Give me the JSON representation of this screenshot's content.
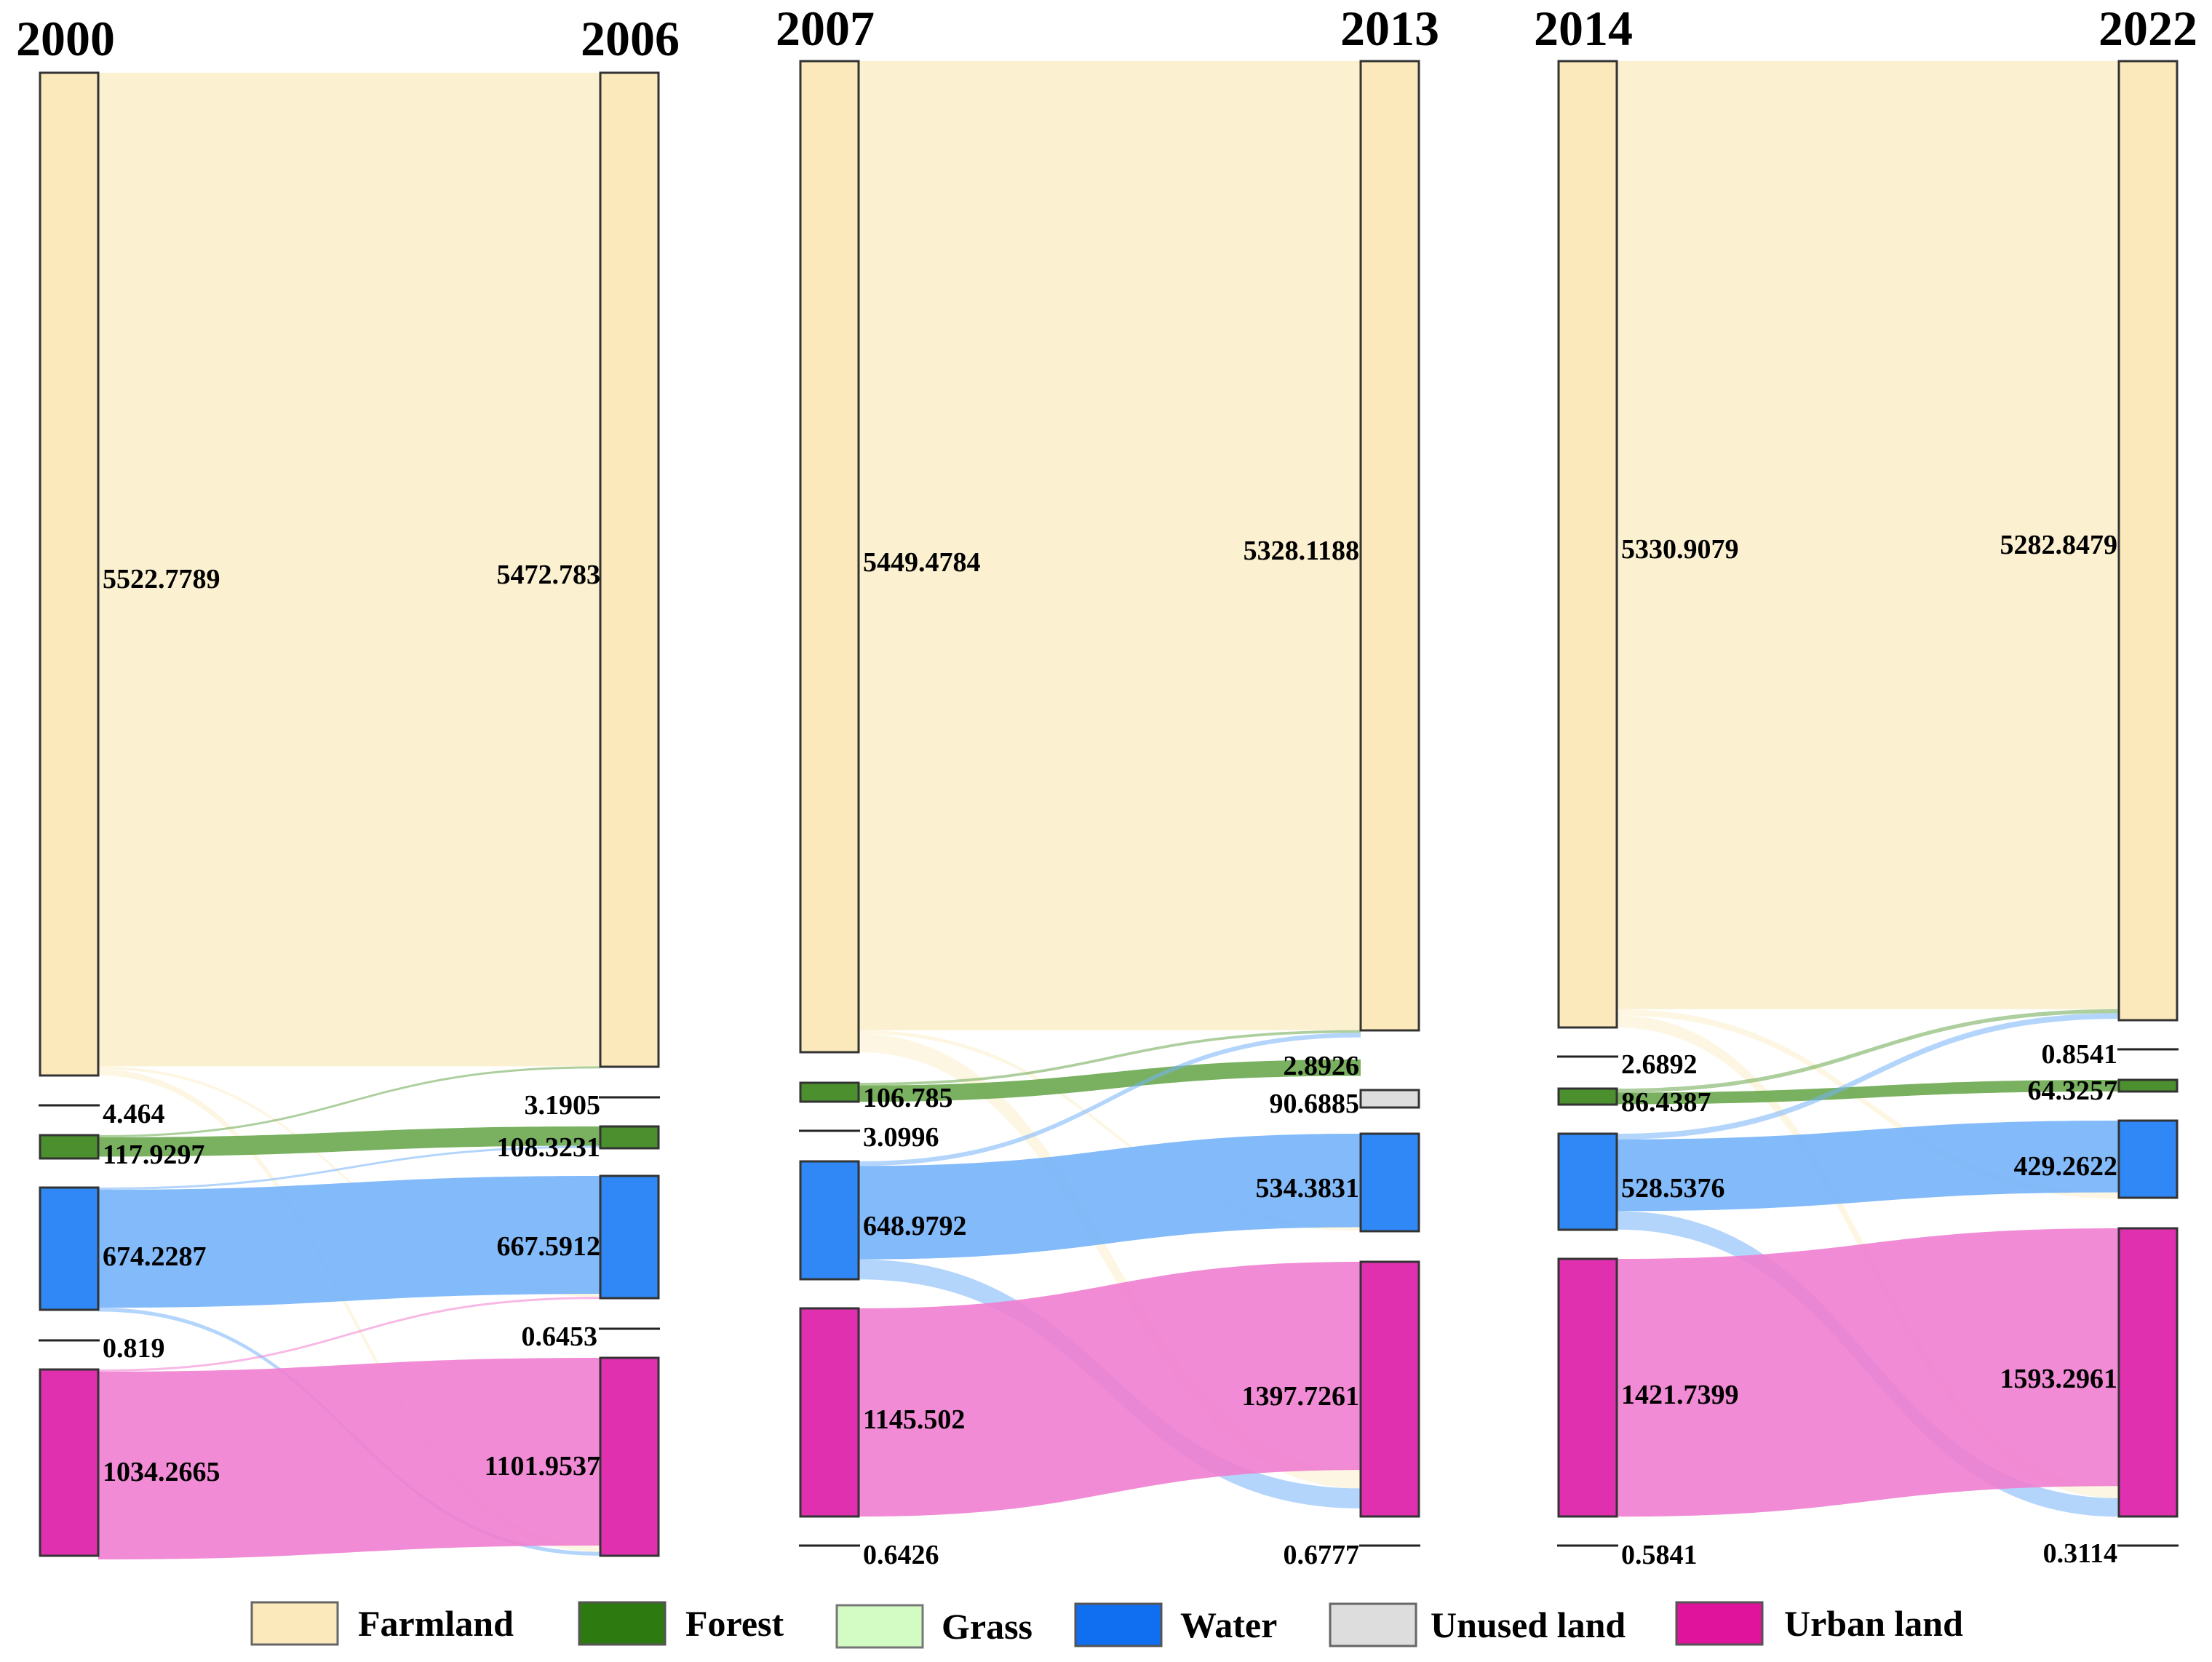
{
  "chart_data": [
    {
      "type": "sankey",
      "years": [
        "2000",
        "2006"
      ],
      "classes": [
        "Farmland",
        "Unused land",
        "Forest",
        "Water",
        "Grass",
        "Urban land"
      ],
      "left_values": [
        "5522.7789",
        "4.464",
        "117.9297",
        "674.2287",
        "0.819",
        "1034.2665"
      ],
      "right_values": [
        "5472.783",
        "3.1905",
        "108.3231",
        "667.5912",
        "0.6453",
        "1101.9537"
      ],
      "flows": [
        {
          "from": "Farmland",
          "to": "Farmland",
          "value": 5472
        },
        {
          "from": "Farmland",
          "to": "Urban land",
          "value": 35
        },
        {
          "from": "Farmland",
          "to": "Water",
          "value": 16
        },
        {
          "from": "Forest",
          "to": "Forest",
          "value": 106
        },
        {
          "from": "Forest",
          "to": "Farmland",
          "value": 11
        },
        {
          "from": "Water",
          "to": "Water",
          "value": 650
        },
        {
          "from": "Water",
          "to": "Urban land",
          "value": 21
        },
        {
          "from": "Water",
          "to": "Forest",
          "value": 2
        },
        {
          "from": "Urban land",
          "to": "Urban land",
          "value": 1034
        },
        {
          "from": "Urban land",
          "to": "Water",
          "value": 2
        }
      ]
    },
    {
      "type": "sankey",
      "years": [
        "2007",
        "2013"
      ],
      "classes": [
        "Farmland",
        "Forest",
        "Unused land",
        "Water",
        "Urban land",
        "Grass"
      ],
      "left_values": [
        "5449.4784",
        "106.785",
        "3.0996",
        "648.9792",
        "1145.502",
        "0.6426"
      ],
      "right_values": [
        "5328.1188",
        "2.8926",
        "90.6885",
        "534.3831",
        "1397.7261",
        "0.6777"
      ],
      "flows": [
        {
          "from": "Farmland",
          "to": "Farmland",
          "value": 5328
        },
        {
          "from": "Farmland",
          "to": "Urban land",
          "value": 101
        },
        {
          "from": "Farmland",
          "to": "Water",
          "value": 20
        },
        {
          "from": "Forest",
          "to": "Forest",
          "value": 90
        },
        {
          "from": "Forest",
          "to": "Farmland",
          "value": 15
        },
        {
          "from": "Water",
          "to": "Water",
          "value": 514
        },
        {
          "from": "Water",
          "to": "Urban land",
          "value": 110
        },
        {
          "from": "Water",
          "to": "Farmland",
          "value": 25
        },
        {
          "from": "Urban land",
          "to": "Urban land",
          "value": 1145
        }
      ]
    },
    {
      "type": "sankey",
      "years": [
        "2014",
        "2022"
      ],
      "classes": [
        "Farmland",
        "Unused land",
        "Forest",
        "Water",
        "Urban land",
        "Grass"
      ],
      "left_values": [
        "5330.9079",
        "2.6892",
        "86.4387",
        "528.5376",
        "1421.7399",
        "0.5841"
      ],
      "right_values": [
        "5282.8479",
        "0.8541",
        "64.3257",
        "429.2622",
        "1593.2961",
        "0.3114"
      ],
      "flows": [
        {
          "from": "Farmland",
          "to": "Farmland",
          "value": 5230
        },
        {
          "from": "Farmland",
          "to": "Urban land",
          "value": 67
        },
        {
          "from": "Farmland",
          "to": "Water",
          "value": 34
        },
        {
          "from": "Forest",
          "to": "Forest",
          "value": 64
        },
        {
          "from": "Forest",
          "to": "Farmland",
          "value": 22
        },
        {
          "from": "Water",
          "to": "Water",
          "value": 396
        },
        {
          "from": "Water",
          "to": "Farmland",
          "value": 31
        },
        {
          "from": "Water",
          "to": "Urban land",
          "value": 102
        },
        {
          "from": "Urban land",
          "to": "Urban land",
          "value": 1422
        }
      ]
    }
  ],
  "legend": [
    {
      "label": "Farmland",
      "color": "#fbe8bb"
    },
    {
      "label": "Forest",
      "color": "#2d7a10"
    },
    {
      "label": "Grass",
      "color": "#d3fcc4"
    },
    {
      "label": "Water",
      "color": "#0f6ff0"
    },
    {
      "label": "Unused land",
      "color": "#dddddd"
    },
    {
      "label": "Urban land",
      "color": "#e0149c"
    }
  ],
  "colors": {
    "Farmland": {
      "node": "#fbe8bb",
      "flow": "#fbeecb"
    },
    "Forest": {
      "node": "#4c8f2e",
      "flow": "#6aa84f"
    },
    "Water": {
      "node": "#2f88f5",
      "flow": "#74b2fa"
    },
    "Urban land": {
      "node": "#e030b0",
      "flow": "#f07ed0"
    },
    "Unused land": {
      "node": "#dddddd",
      "flow": "#c4c4c4"
    },
    "Grass": {
      "node": "#d3fcc4",
      "flow": "#cfe8c0"
    }
  }
}
